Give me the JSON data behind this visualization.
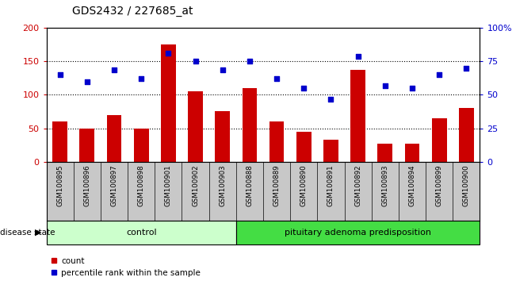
{
  "title": "GDS2432 / 227685_at",
  "categories": [
    "GSM100895",
    "GSM100896",
    "GSM100897",
    "GSM100898",
    "GSM100901",
    "GSM100902",
    "GSM100903",
    "GSM100888",
    "GSM100889",
    "GSM100890",
    "GSM100891",
    "GSM100892",
    "GSM100893",
    "GSM100894",
    "GSM100899",
    "GSM100900"
  ],
  "bar_values": [
    60,
    50,
    70,
    50,
    175,
    105,
    75,
    110,
    60,
    45,
    33,
    138,
    27,
    27,
    65,
    80
  ],
  "scatter_values": [
    65,
    60,
    69,
    62,
    81,
    75,
    69,
    75,
    62,
    55,
    47,
    79,
    57,
    55,
    65,
    70
  ],
  "bar_color": "#cc0000",
  "scatter_color": "#0000cc",
  "ylim_left": [
    0,
    200
  ],
  "ylim_right": [
    0,
    100
  ],
  "yticks_left": [
    0,
    50,
    100,
    150,
    200
  ],
  "ytick_labels_left": [
    "0",
    "50",
    "100",
    "150",
    "200"
  ],
  "yticks_right": [
    0,
    25,
    50,
    75,
    100
  ],
  "ytick_labels_right": [
    "0",
    "25",
    "50",
    "75",
    "100%"
  ],
  "control_count": 7,
  "control_label": "control",
  "disease_label": "pituitary adenoma predisposition",
  "group_label": "disease state",
  "legend_bar": "count",
  "legend_scatter": "percentile rank within the sample",
  "control_bg": "#ccffcc",
  "disease_bg": "#44dd44",
  "xlabel_bg": "#c8c8c8"
}
